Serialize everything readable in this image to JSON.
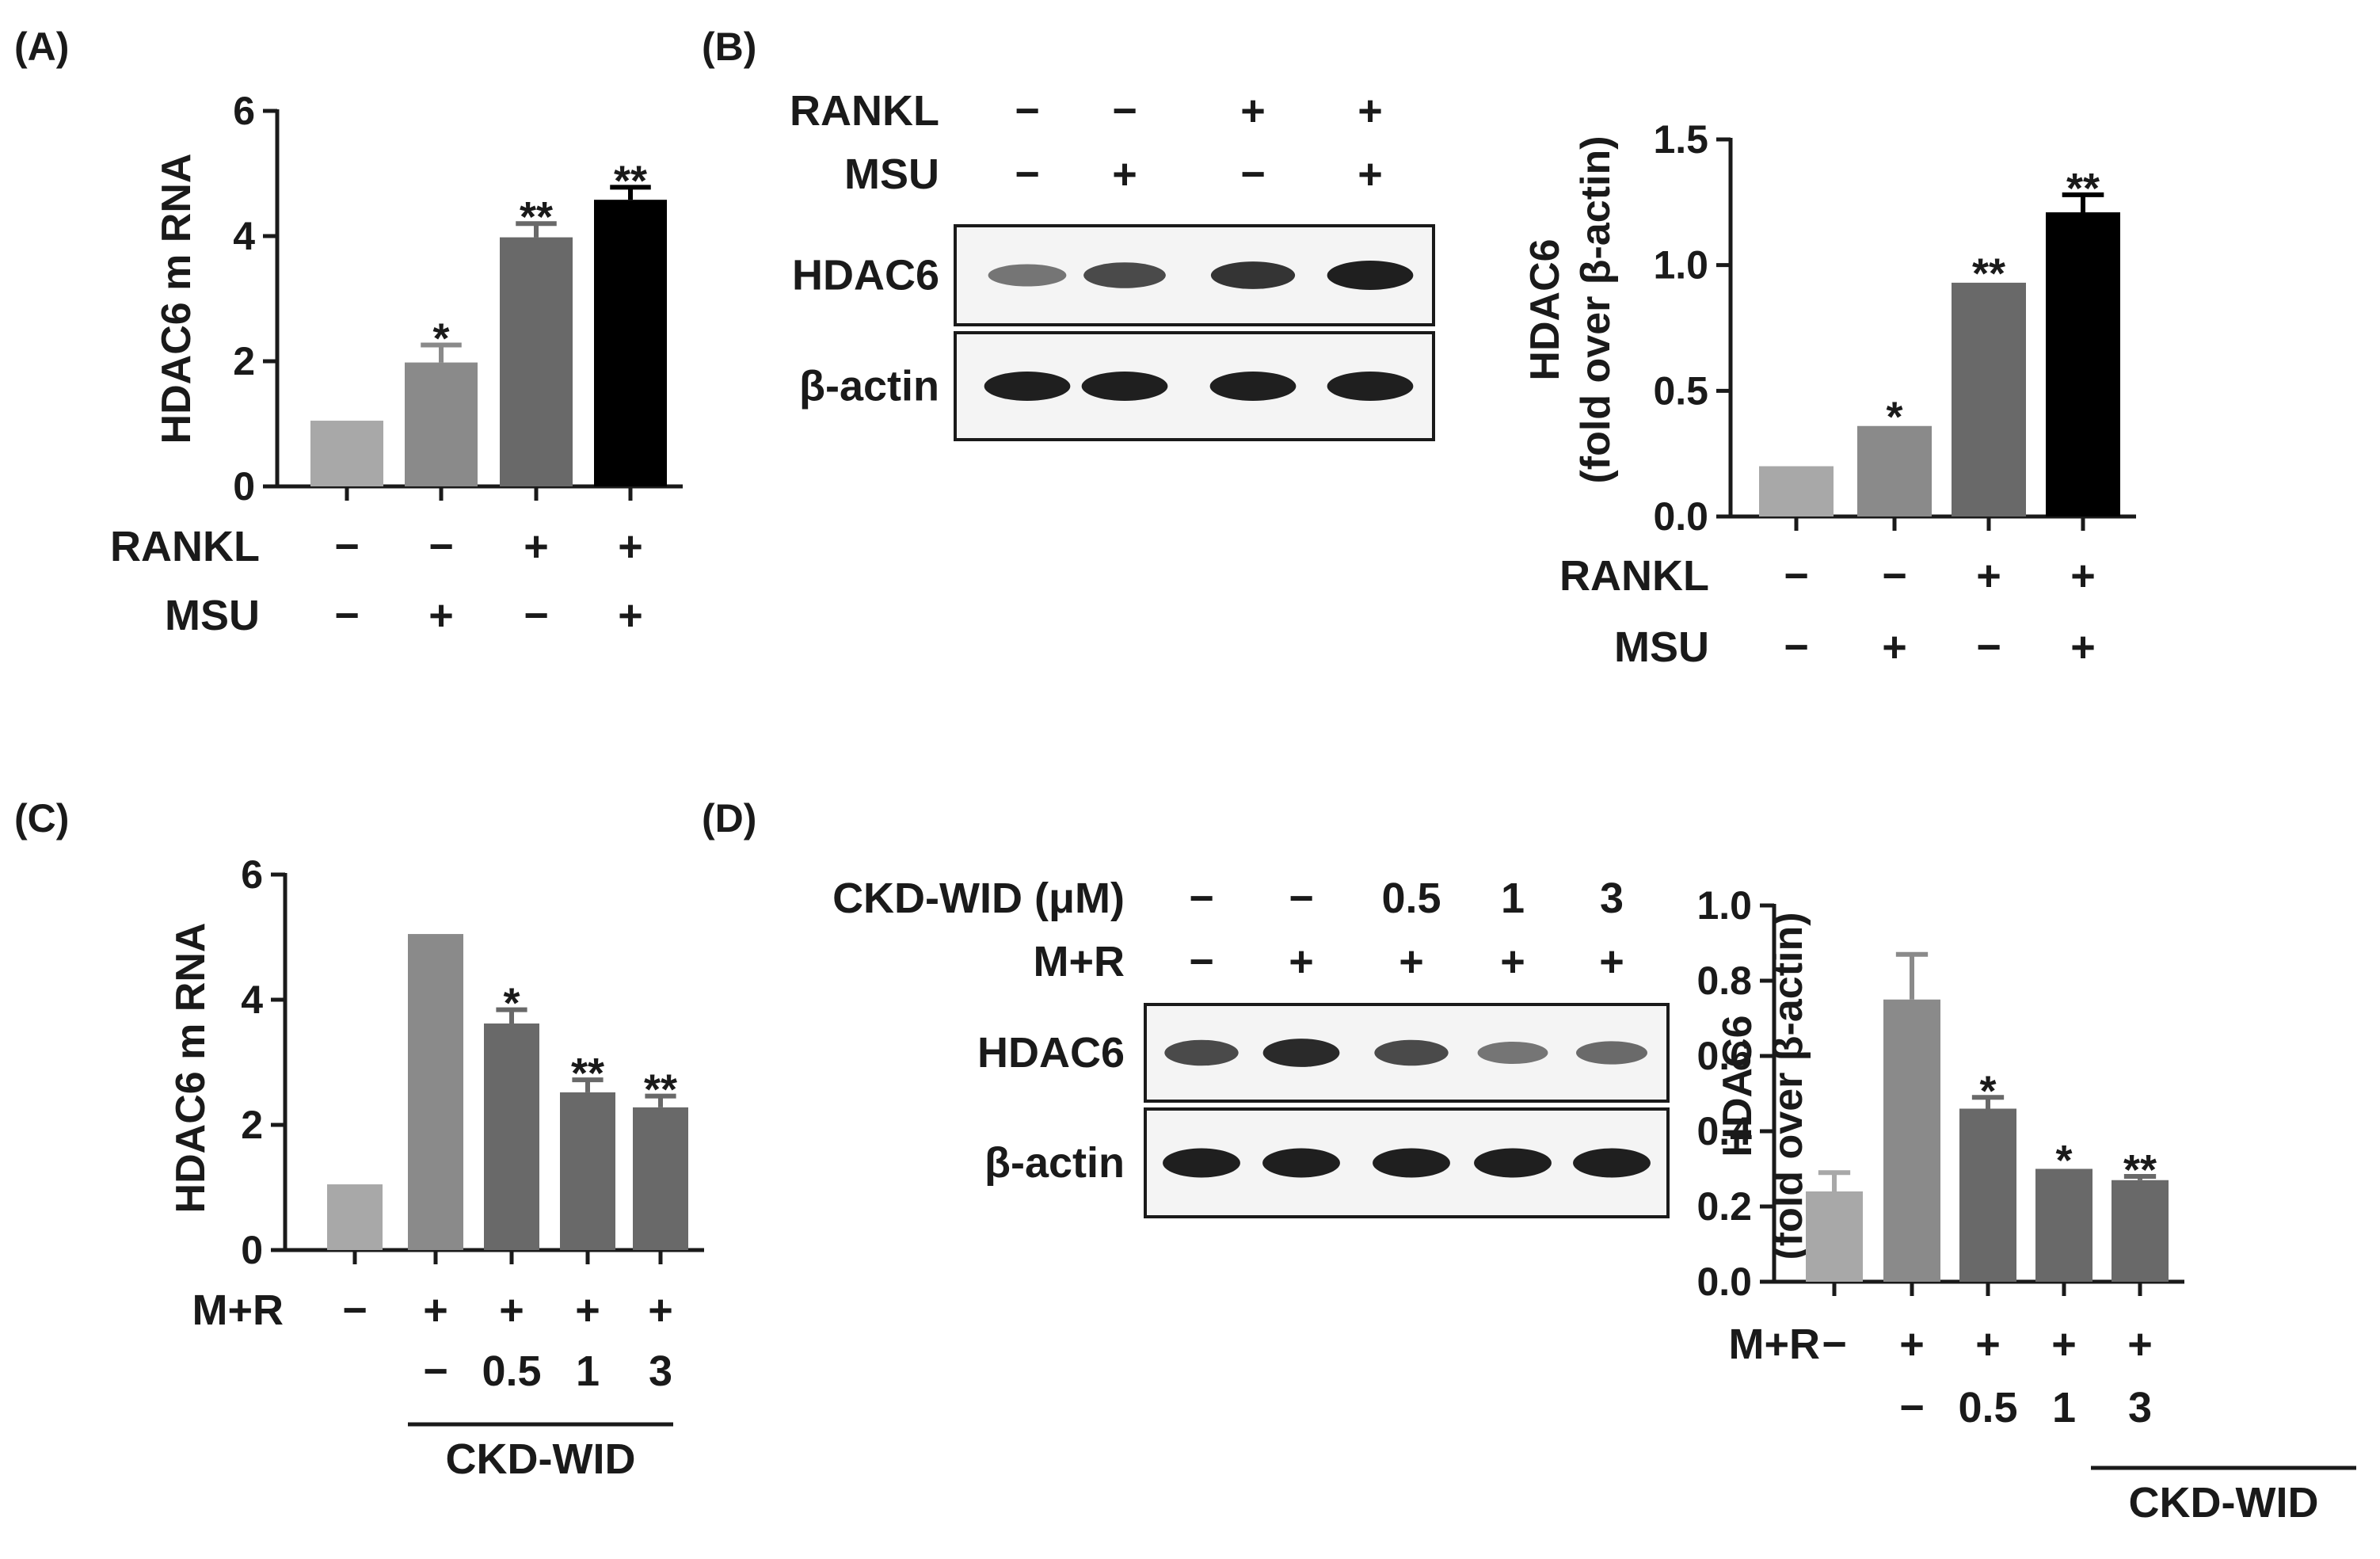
{
  "panels": [
    {
      "id": "A",
      "label": "(A)",
      "chart": {
        "type": "bar",
        "ylabel": "HDAC6 m RNA",
        "ylim": [
          0,
          6
        ],
        "yticks": [
          "0",
          "2",
          "4",
          "6"
        ],
        "ytick_values": [
          0,
          2,
          4,
          6
        ],
        "values": [
          1.05,
          1.98,
          3.98,
          4.58
        ],
        "errors": [
          0.03,
          0.28,
          0.22,
          0.2
        ],
        "annotations": [
          "",
          "*",
          "**",
          "**"
        ],
        "colors": [
          "#a8a8a8",
          "#8a8a8a",
          "#696969",
          "#000000"
        ],
        "conditions": [
          {
            "name": "RANKL",
            "signs": [
              "−",
              "−",
              "+",
              "+"
            ]
          },
          {
            "name": "MSU",
            "signs": [
              "−",
              "+",
              "−",
              "+"
            ]
          }
        ]
      }
    },
    {
      "id": "B",
      "label": "(B)",
      "blot": {
        "conditions": [
          {
            "name": "RANKL",
            "signs": [
              "−",
              "−",
              "+",
              "+"
            ]
          },
          {
            "name": "MSU",
            "signs": [
              "−",
              "+",
              "−",
              "+"
            ]
          }
        ],
        "rows": [
          {
            "name": "HDAC6",
            "intensity": [
              0.55,
              0.75,
              0.85,
              0.95
            ]
          },
          {
            "name": "β-actin",
            "intensity": [
              0.95,
              0.95,
              0.95,
              0.95
            ]
          }
        ]
      },
      "chart": {
        "type": "bar",
        "ylabel": [
          "HDAC6",
          "(fold over β-actin)"
        ],
        "ylim": [
          0,
          1.5
        ],
        "yticks": [
          "0.0",
          "0.5",
          "1.0",
          "1.5"
        ],
        "ytick_values": [
          0,
          0.5,
          1.0,
          1.5
        ],
        "values": [
          0.2,
          0.36,
          0.93,
          1.21
        ],
        "errors": [
          0.005,
          0.01,
          0.01,
          0.07
        ],
        "annotations": [
          "",
          "*",
          "**",
          "**"
        ],
        "colors": [
          "#a8a8a8",
          "#8a8a8a",
          "#696969",
          "#000000"
        ],
        "conditions": [
          {
            "name": "RANKL",
            "signs": [
              "−",
              "−",
              "+",
              "+"
            ]
          },
          {
            "name": "MSU",
            "signs": [
              "−",
              "+",
              "−",
              "+"
            ]
          }
        ]
      }
    },
    {
      "id": "C",
      "label": "(C)",
      "chart": {
        "type": "bar",
        "ylabel": "HDAC6 m RNA",
        "ylim": [
          0,
          6
        ],
        "yticks": [
          "0",
          "2",
          "4",
          "6"
        ],
        "ytick_values": [
          0,
          2,
          4,
          6
        ],
        "values": [
          1.05,
          5.05,
          3.62,
          2.52,
          2.28
        ],
        "errors": [
          0.03,
          0.04,
          0.22,
          0.2,
          0.18
        ],
        "annotations": [
          "",
          "",
          "*",
          "**",
          "**"
        ],
        "colors": [
          "#a8a8a8",
          "#8a8a8a",
          "#696969",
          "#696969",
          "#696969"
        ],
        "conditions": [
          {
            "name": "M+R",
            "signs": [
              "−",
              "+",
              "+",
              "+",
              "+"
            ]
          },
          {
            "name": "",
            "signs": [
              "",
              "−",
              "0.5",
              "1",
              "3"
            ]
          }
        ],
        "group_label": "CKD-WID"
      }
    },
    {
      "id": "D",
      "label": "(D)",
      "blot": {
        "conditions": [
          {
            "name": "CKD-WID (μM)",
            "signs": [
              "−",
              "−",
              "0.5",
              "1",
              "3"
            ]
          },
          {
            "name": "M+R",
            "signs": [
              "−",
              "+",
              "+",
              "+",
              "+"
            ]
          }
        ],
        "rows": [
          {
            "name": "HDAC6",
            "intensity": [
              0.75,
              0.9,
              0.75,
              0.55,
              0.6
            ]
          },
          {
            "name": "β-actin",
            "intensity": [
              0.95,
              0.95,
              0.95,
              0.95,
              0.95
            ]
          }
        ]
      },
      "chart": {
        "type": "bar",
        "ylabel": [
          "HDAC6",
          "(fold over β-actin)"
        ],
        "ylim": [
          0,
          1.0
        ],
        "yticks": [
          "0.0",
          "0.2",
          "0.4",
          "0.6",
          "0.8",
          "1.0"
        ],
        "ytick_values": [
          0,
          0.2,
          0.4,
          0.6,
          0.8,
          1.0
        ],
        "values": [
          0.24,
          0.75,
          0.46,
          0.3,
          0.27
        ],
        "errors": [
          0.05,
          0.12,
          0.03,
          0.005,
          0.01
        ],
        "annotations": [
          "",
          "",
          "*",
          "*",
          "**"
        ],
        "colors": [
          "#a8a8a8",
          "#8a8a8a",
          "#696969",
          "#696969",
          "#696969"
        ],
        "conditions": [
          {
            "name": "M+R",
            "signs": [
              "−",
              "+",
              "+",
              "+",
              "+"
            ]
          },
          {
            "name": "",
            "signs": [
              "",
              "−",
              "0.5",
              "1",
              "3"
            ]
          }
        ],
        "group_label": "CKD-WID"
      }
    }
  ]
}
